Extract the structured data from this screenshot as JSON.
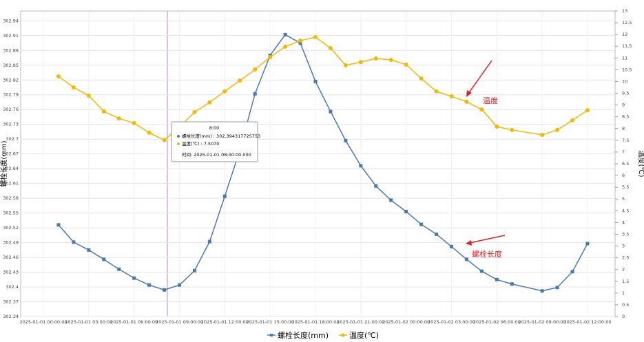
{
  "chart_data": {
    "type": "line",
    "ylabel": "螺栓长度(mm)",
    "y2label": "温度(℃)",
    "x": [
      "2025-01-01 01:00:00",
      "2025-01-01 02:00:00",
      "2025-01-01 03:00:00",
      "2025-01-01 04:00:00",
      "2025-01-01 05:00:00",
      "2025-01-01 06:00:00",
      "2025-01-01 07:00:00",
      "2025-01-01 08:00:00",
      "2025-01-01 09:00:00",
      "2025-01-01 10:00:00",
      "2025-01-01 11:00:00",
      "2025-01-01 12:00:00",
      "2025-01-01 13:00:00",
      "2025-01-01 14:00:00",
      "2025-01-01 15:00:00",
      "2025-01-01 16:00:00",
      "2025-01-01 17:00:00",
      "2025-01-01 18:00:00",
      "2025-01-01 19:00:00",
      "2025-01-01 20:00:00",
      "2025-01-01 21:00:00",
      "2025-01-01 22:00:00",
      "2025-01-01 23:00:00",
      "2025-01-02 00:00:00",
      "2025-01-02 01:00:00",
      "2025-01-02 02:00:00",
      "2025-01-02 03:00:00",
      "2025-01-02 04:00:00",
      "2025-01-02 05:00:00",
      "2025-01-02 06:00:00",
      "2025-01-02 07:00:00",
      "2025-01-02 09:00:00",
      "2025-01-02 10:00:00",
      "2025-01-02 11:00:00",
      "2025-01-02 12:00:00"
    ],
    "series": [
      {
        "name": "螺栓长度(mm)",
        "color": "#4a78b5",
        "marker": "square",
        "values": [
          302.526,
          302.491,
          302.475,
          302.456,
          302.436,
          302.418,
          302.404,
          302.394,
          302.404,
          302.433,
          302.492,
          302.584,
          302.678,
          302.792,
          302.87,
          302.912,
          302.895,
          302.817,
          302.756,
          302.697,
          302.646,
          302.605,
          302.576,
          302.553,
          302.527,
          302.507,
          302.482,
          302.456,
          302.432,
          302.415,
          302.406,
          302.392,
          302.399,
          302.431,
          302.488
        ]
      },
      {
        "name": "温度(℃)",
        "color": "#f5b800",
        "marker": "circle",
        "axis": "y2",
        "values": [
          10.22,
          9.75,
          9.4,
          8.73,
          8.43,
          8.23,
          7.82,
          7.507,
          8.05,
          8.7,
          9.11,
          9.58,
          10.04,
          10.51,
          11.04,
          11.48,
          11.74,
          11.89,
          11.42,
          10.69,
          10.83,
          10.98,
          10.92,
          10.72,
          10.13,
          9.58,
          9.37,
          9.14,
          8.81,
          8.08,
          7.94,
          7.73,
          7.94,
          8.35,
          8.78
        ]
      }
    ],
    "xlim": [
      "2025-01-01 00:00:00",
      "2025-01-02 12:00:00"
    ],
    "xticks": [
      "2025-01-01 00:00:00",
      "2025-01-01 03:00:00",
      "2025-01-01 06:00:00",
      "2025-01-01 09:00:00",
      "2025-01-01 12:00:00",
      "2025-01-01 15:00:00",
      "2025-01-01 18:00:00",
      "2025-01-01 21:00:00",
      "2025-01-02 00:00:00",
      "2025-01-02 03:00:00",
      "2025-01-02 06:00:00",
      "2025-01-02 09:00:00",
      "2025-01-02 12:00:00"
    ],
    "ylim": [
      302.34,
      302.96
    ],
    "yticks": [
      302.34,
      302.37,
      302.4,
      302.43,
      302.46,
      302.49,
      302.52,
      302.55,
      302.58,
      302.61,
      302.64,
      302.67,
      302.7,
      302.73,
      302.76,
      302.79,
      302.82,
      302.85,
      302.88,
      302.91,
      302.94
    ],
    "y2lim": [
      0,
      13
    ],
    "y2ticks": [
      0,
      0.5,
      1,
      1.5,
      2,
      2.5,
      3,
      3.5,
      4,
      4.5,
      5,
      5.5,
      6,
      6.5,
      7,
      7.5,
      8,
      8.5,
      9,
      9.5,
      10,
      10.5,
      11,
      11.5,
      12,
      12.5,
      13
    ],
    "grid": true,
    "legend": "bottom",
    "annotations": [
      "温度",
      "螺栓长度"
    ]
  },
  "tooltip": {
    "title": "8:00",
    "line1": "螺栓长度(mm) : 302.394317725753",
    "line2": "温度(℃) : 7.5070",
    "line3": "时间: 2025-01-01 08:00:00.000"
  }
}
